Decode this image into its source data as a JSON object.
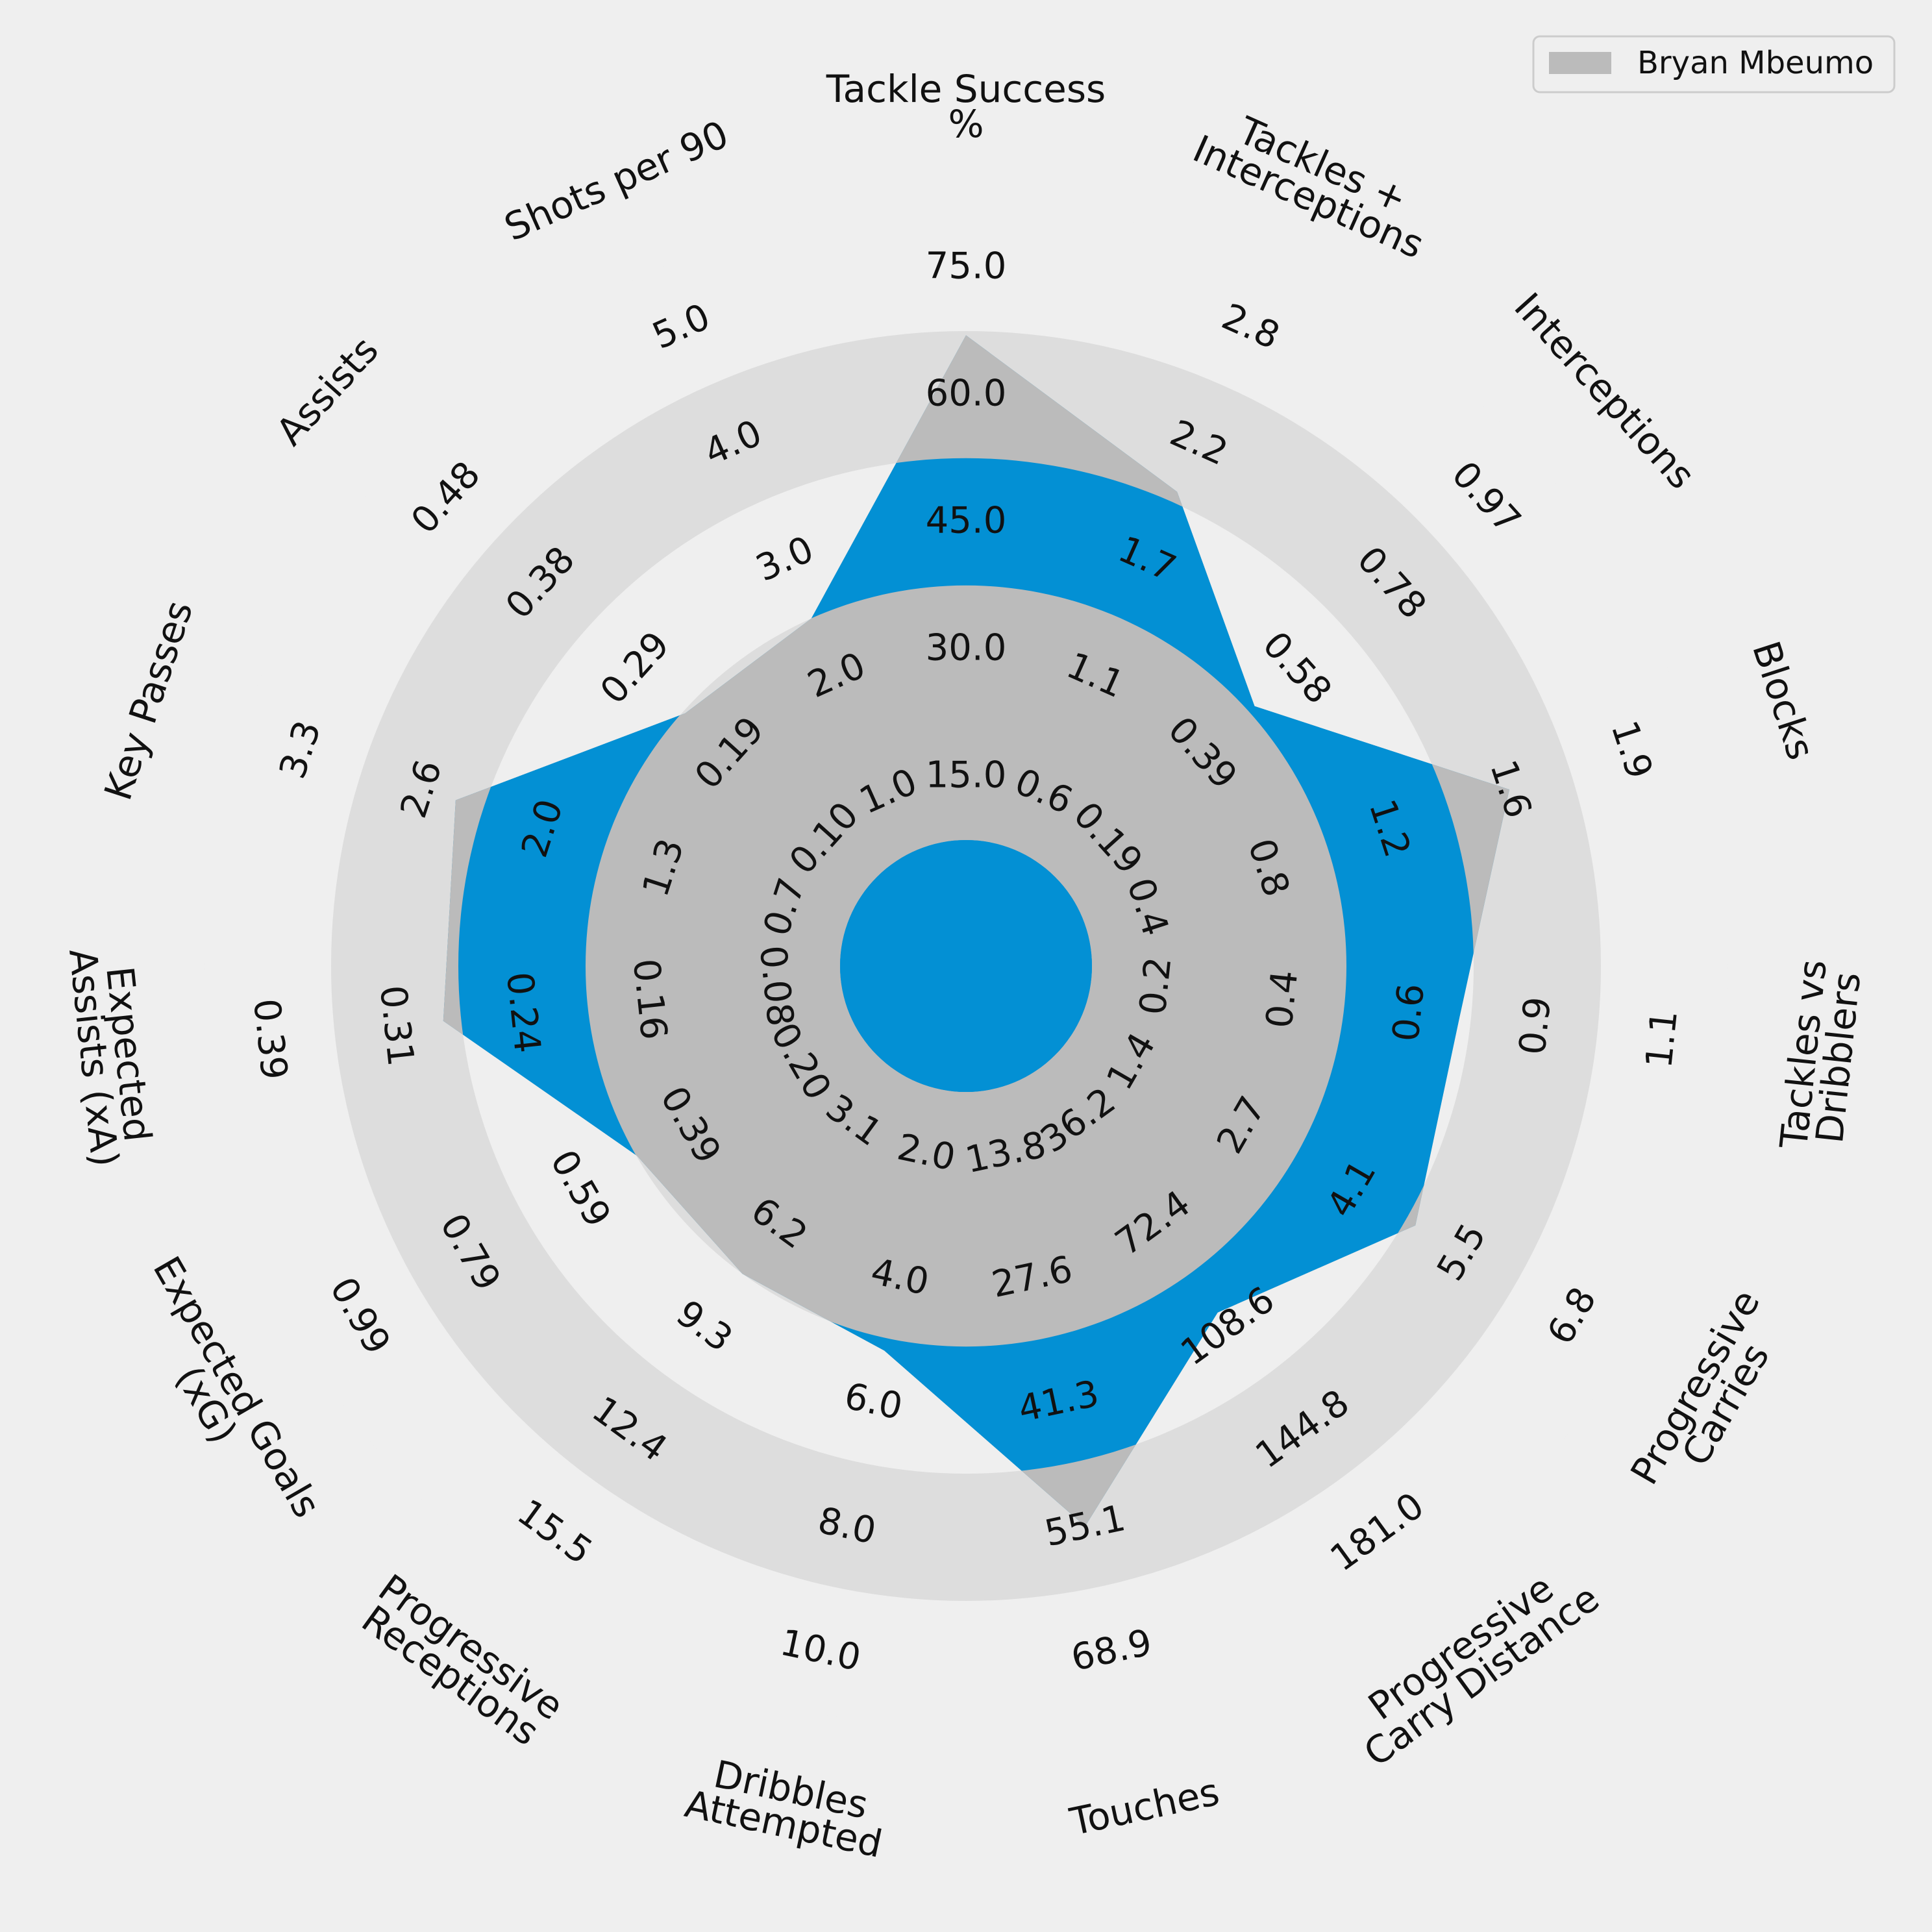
{
  "chart_data": {
    "type": "radar",
    "params": [
      "Tackle Success\n%",
      "Tackles +\nInterceptions",
      "Interceptions",
      "Blocks",
      "Tackles vs\nDribblers",
      "Progressive\nCarries",
      "Progressive\nCarry Distance",
      "Touches",
      "Dribbles\nAttempted",
      "Progressive\nReceptions",
      "Expected Goals\n(xG)",
      "Expected\nAssists (xA)",
      "Key Passes",
      "Assists",
      "Shots per 90"
    ],
    "ticks": [
      [
        "15.0",
        "30.0",
        "45.0",
        "60.0",
        "75.0"
      ],
      [
        "0.6",
        "1.1",
        "1.7",
        "2.2",
        "2.8"
      ],
      [
        "0.19",
        "0.39",
        "0.58",
        "0.78",
        "0.97"
      ],
      [
        "0.4",
        "0.8",
        "1.2",
        "1.6",
        "1.9"
      ],
      [
        "0.2",
        "0.4",
        "0.6",
        "0.9",
        "1.1"
      ],
      [
        "1.4",
        "2.7",
        "4.1",
        "5.5",
        "6.8"
      ],
      [
        "36.2",
        "72.4",
        "108.6",
        "144.8",
        "181.0"
      ],
      [
        "13.8",
        "27.6",
        "41.3",
        "55.1",
        "68.9"
      ],
      [
        "2.0",
        "4.0",
        "6.0",
        "8.0",
        "10.0"
      ],
      [
        "3.1",
        "6.2",
        "9.3",
        "12.4",
        "15.5"
      ],
      [
        "0.20",
        "0.39",
        "0.59",
        "0.79",
        "0.99"
      ],
      [
        "0.08",
        "0.16",
        "0.24",
        "0.31",
        "0.39"
      ],
      [
        "0.7",
        "1.3",
        "2.0",
        "2.6",
        "3.3"
      ],
      [
        "0.10",
        "0.19",
        "0.29",
        "0.38",
        "0.48"
      ],
      [
        "1.0",
        "2.0",
        "3.0",
        "4.0",
        "5.0"
      ]
    ],
    "ranges": [
      [
        0,
        75
      ],
      [
        0,
        2.8
      ],
      [
        0,
        0.97
      ],
      [
        0,
        1.9
      ],
      [
        0,
        1.1
      ],
      [
        0,
        6.8
      ],
      [
        0,
        181
      ],
      [
        0,
        68.9
      ],
      [
        0,
        10
      ],
      [
        0,
        15.5
      ],
      [
        0,
        0.99
      ],
      [
        0,
        0.39
      ],
      [
        0,
        3.3
      ],
      [
        0,
        0.48
      ],
      [
        0,
        5
      ]
    ],
    "series": [
      {
        "name": "Bryan Mbeumo",
        "values": [
          59.5,
          1.73,
          0.4,
          1.33,
          0.64,
          4.2,
          86,
          48.4,
          4.2,
          6.2,
          0.395,
          0.245,
          2.13,
          0.19,
          2.0
        ],
        "color": "#bbbbbb"
      }
    ],
    "rings": 5,
    "colors": {
      "background": "#efefef",
      "ring_light": "#dddddd",
      "ring_dark": "#efefef",
      "highlight": "#0390d4"
    },
    "legend_position": "top-right"
  }
}
